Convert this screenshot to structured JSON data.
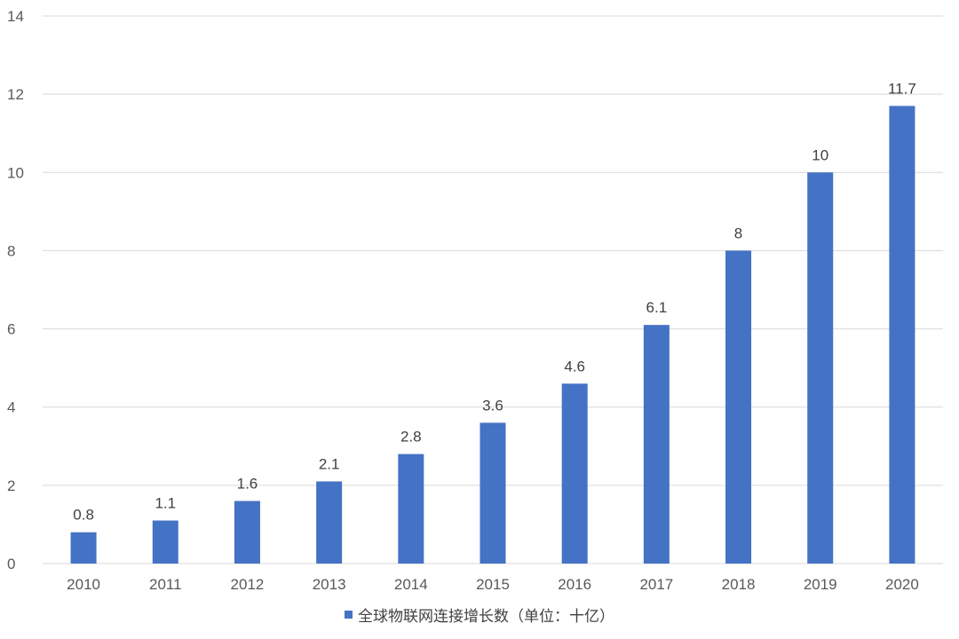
{
  "chart_data": {
    "type": "bar",
    "categories": [
      "2010",
      "2011",
      "2012",
      "2013",
      "2014",
      "2015",
      "2016",
      "2017",
      "2018",
      "2019",
      "2020"
    ],
    "series": [
      {
        "name": "全球物联网连接增长数（单位：十亿）",
        "values": [
          0.8,
          1.1,
          1.6,
          2.1,
          2.8,
          3.6,
          4.6,
          6.1,
          8,
          10,
          11.7
        ],
        "data_labels": [
          "0.8",
          "1.1",
          "1.6",
          "2.1",
          "2.8",
          "3.6",
          "4.6",
          "6.1",
          "8",
          "10",
          "11.7"
        ],
        "color": "#4472C4"
      }
    ],
    "ylim": [
      0,
      14
    ],
    "yticks": [
      0,
      2,
      4,
      6,
      8,
      10,
      12,
      14
    ],
    "ytick_labels": [
      "0",
      "2",
      "4",
      "6",
      "8",
      "10",
      "12",
      "14"
    ],
    "grid": true,
    "grid_color": "#D9D9D9",
    "legend_position": "bottom",
    "title": "",
    "xlabel": "",
    "ylabel": ""
  }
}
